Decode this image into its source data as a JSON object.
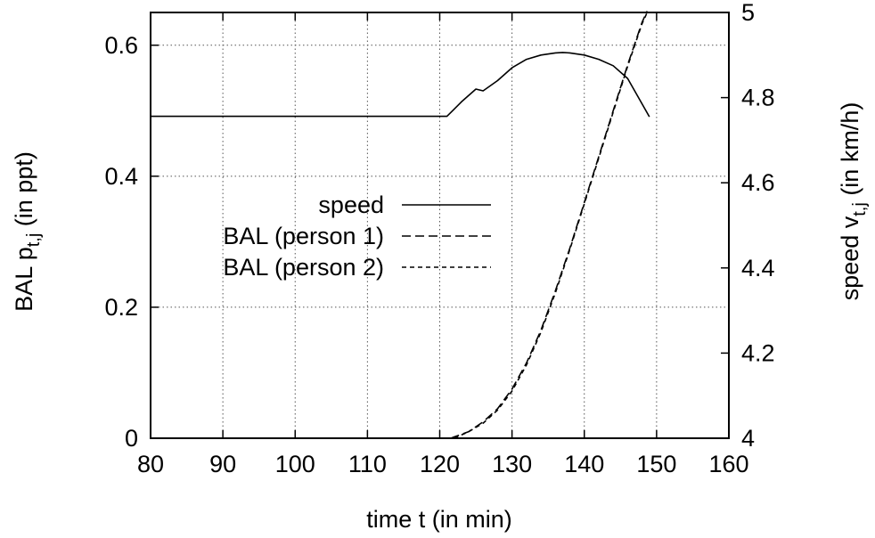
{
  "chart_data": {
    "type": "line",
    "xlabel": "time t (in min)",
    "ylabel_left": {
      "main": "BAL p",
      "sub": "t,j",
      "suffix": " (in ppt)"
    },
    "ylabel_right": {
      "main": "speed  v",
      "sub": "t,j",
      "suffix": " (in km/h)"
    },
    "xlim": [
      80,
      160
    ],
    "ylim_left": [
      0,
      0.65
    ],
    "ylim_right": [
      4,
      5
    ],
    "x_ticks": [
      80,
      90,
      100,
      110,
      120,
      130,
      140,
      150,
      160
    ],
    "x_tick_labels": [
      "80",
      "90",
      "100",
      "110",
      "120",
      "130",
      "140",
      "150",
      "160"
    ],
    "y_left_ticks": [
      0,
      0.2,
      0.4,
      0.6
    ],
    "y_left_tick_labels": [
      "0",
      "0.2",
      "0.4",
      "0.6"
    ],
    "y_right_ticks": [
      4,
      4.2,
      4.4,
      4.6,
      4.8,
      5
    ],
    "y_right_tick_labels": [
      "4",
      "4.2",
      "4.4",
      "4.6",
      "4.8",
      "5"
    ],
    "grid": true,
    "legend_position": "center-left",
    "series": [
      {
        "name": "speed",
        "axis": "right",
        "style": "solid",
        "x": [
          80,
          121,
          123,
          125,
          126,
          128,
          130,
          132,
          134,
          136,
          137,
          138,
          140,
          142,
          144,
          146,
          147,
          149
        ],
        "y": [
          4.756,
          4.756,
          4.79,
          4.82,
          4.816,
          4.84,
          4.87,
          4.89,
          4.9,
          4.905,
          4.906,
          4.905,
          4.9,
          4.89,
          4.875,
          4.845,
          4.815,
          4.755
        ]
      },
      {
        "name": "BAL (person 1)",
        "axis": "left",
        "style": "dashed",
        "x": [
          121.5,
          124,
          126,
          128,
          130,
          132,
          134,
          136,
          138,
          140,
          142,
          144,
          146,
          148,
          148.7
        ],
        "y": [
          0.0,
          0.01,
          0.025,
          0.045,
          0.075,
          0.115,
          0.165,
          0.225,
          0.29,
          0.36,
          0.43,
          0.5,
          0.57,
          0.635,
          0.652
        ]
      },
      {
        "name": "BAL (person 2)",
        "axis": "left",
        "style": "dotted-dash",
        "x": [
          122,
          124,
          126,
          128,
          130,
          132,
          134,
          136,
          138,
          140,
          142,
          144,
          146,
          148,
          148.7
        ],
        "y": [
          0.0,
          0.01,
          0.023,
          0.043,
          0.072,
          0.112,
          0.162,
          0.222,
          0.288,
          0.358,
          0.428,
          0.498,
          0.568,
          0.633,
          0.65
        ]
      }
    ]
  }
}
